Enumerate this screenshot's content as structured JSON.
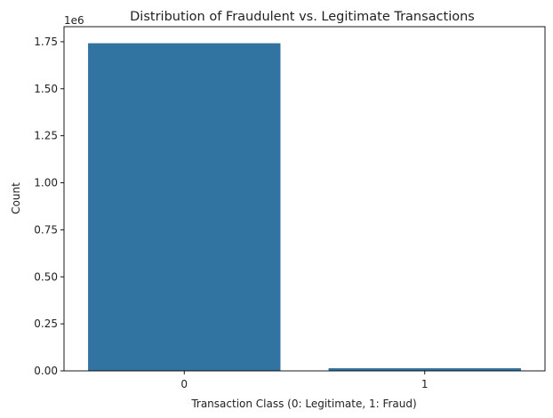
{
  "chart_data": {
    "type": "bar",
    "title": "Distribution of Fraudulent vs. Legitimate Transactions",
    "xlabel": "Transaction Class (0: Legitimate, 1: Fraud)",
    "ylabel": "Count",
    "y_offset_label": "1e6",
    "categories": [
      "0",
      "1"
    ],
    "values": [
      1742000,
      14000
    ],
    "ylim": [
      0,
      1830000
    ],
    "yticks": [
      0,
      250000,
      500000,
      750000,
      1000000,
      1250000,
      1500000,
      1750000
    ],
    "ytick_labels": [
      "0.00",
      "0.25",
      "0.50",
      "0.75",
      "1.00",
      "1.25",
      "1.50",
      "1.75"
    ],
    "bar_color": "#3274a1",
    "grid": false,
    "legend": "none"
  }
}
